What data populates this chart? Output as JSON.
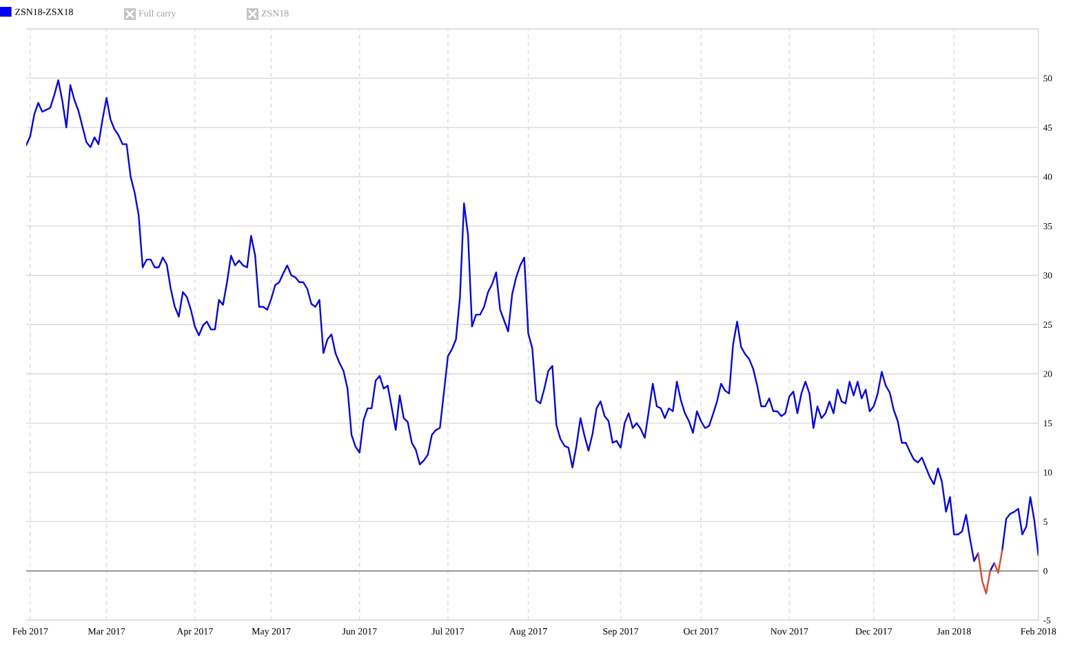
{
  "chart_data": {
    "type": "line",
    "categories": [
      null,
      "Feb 2017",
      null,
      null,
      null,
      null,
      null,
      null,
      null,
      null,
      null,
      null,
      null,
      null,
      null,
      null,
      null,
      null,
      null,
      null,
      "Mar 2017",
      null,
      null,
      null,
      null,
      null,
      null,
      null,
      null,
      null,
      null,
      null,
      null,
      null,
      null,
      null,
      null,
      null,
      null,
      null,
      null,
      null,
      "Apr 2017",
      null,
      null,
      null,
      null,
      null,
      null,
      null,
      null,
      null,
      null,
      null,
      null,
      null,
      null,
      null,
      null,
      null,
      null,
      "May 2017",
      null,
      null,
      null,
      null,
      null,
      null,
      null,
      null,
      null,
      null,
      null,
      null,
      null,
      null,
      null,
      null,
      null,
      null,
      null,
      null,
      null,
      "Jun 2017",
      null,
      null,
      null,
      null,
      null,
      null,
      null,
      null,
      null,
      null,
      null,
      null,
      null,
      null,
      null,
      null,
      null,
      null,
      null,
      null,
      null,
      "Jul 2017",
      null,
      null,
      null,
      null,
      null,
      null,
      null,
      null,
      null,
      null,
      null,
      null,
      null,
      null,
      null,
      null,
      null,
      null,
      null,
      "Aug 2017",
      null,
      null,
      null,
      null,
      null,
      null,
      null,
      null,
      null,
      null,
      null,
      null,
      null,
      null,
      null,
      null,
      null,
      null,
      null,
      null,
      null,
      null,
      "Sep 2017",
      null,
      null,
      null,
      null,
      null,
      null,
      null,
      null,
      null,
      null,
      null,
      null,
      null,
      null,
      null,
      null,
      null,
      null,
      null,
      "Oct 2017",
      null,
      null,
      null,
      null,
      null,
      null,
      null,
      null,
      null,
      null,
      null,
      null,
      null,
      null,
      null,
      null,
      null,
      null,
      null,
      null,
      null,
      "Nov 2017",
      null,
      null,
      null,
      null,
      null,
      null,
      null,
      null,
      null,
      null,
      null,
      null,
      null,
      null,
      null,
      null,
      null,
      null,
      null,
      null,
      "Dec 2017",
      null,
      null,
      null,
      null,
      null,
      null,
      null,
      null,
      null,
      null,
      null,
      null,
      null,
      null,
      null,
      null,
      null,
      null,
      null,
      "Jan 2018",
      null,
      null,
      null,
      null,
      null,
      null,
      null,
      null,
      null,
      null,
      null,
      null,
      null,
      null,
      null,
      null,
      null,
      null,
      null,
      null,
      "Feb 2018"
    ],
    "series": [
      {
        "name": "ZSN18-ZSX18",
        "color": "#0000ff",
        "values": [
          43.2,
          44.1,
          46.3,
          47.5,
          46.6,
          46.8,
          47.0,
          48.3,
          49.8,
          47.7,
          45.0,
          49.3,
          47.8,
          46.7,
          45.1,
          43.5,
          43.0,
          44.0,
          43.3,
          45.8,
          48.0,
          45.8,
          44.8,
          44.2,
          43.3,
          43.3,
          40.0,
          38.4,
          36.1,
          30.8,
          31.6,
          31.6,
          30.8,
          30.8,
          31.8,
          31.1,
          28.6,
          26.8,
          25.8,
          28.3,
          27.8,
          26.5,
          24.8,
          23.9,
          24.9,
          25.3,
          24.5,
          24.5,
          27.5,
          27.0,
          29.3,
          32.0,
          31.0,
          31.5,
          31.0,
          30.8,
          34.0,
          32.0,
          26.8,
          26.8,
          26.5,
          27.6,
          29.0,
          29.3,
          30.2,
          31.0,
          30.0,
          29.8,
          29.3,
          29.3,
          28.6,
          27.1,
          26.8,
          27.5,
          22.1,
          23.5,
          24.0,
          22.1,
          21.1,
          20.3,
          18.5,
          13.8,
          12.6,
          12.0,
          15.3,
          16.5,
          16.5,
          19.3,
          19.8,
          18.5,
          18.8,
          16.6,
          14.3,
          17.8,
          15.5,
          15.1,
          13.0,
          12.3,
          10.8,
          11.2,
          11.8,
          13.8,
          14.3,
          14.5,
          18.1,
          21.8,
          22.5,
          23.5,
          27.8,
          37.3,
          34.1,
          24.8,
          26.0,
          26.0,
          26.8,
          28.3,
          29.1,
          30.3,
          26.5,
          25.4,
          24.3,
          28.1,
          29.8,
          31.0,
          31.8,
          24.1,
          22.6,
          17.3,
          17.0,
          18.5,
          20.3,
          20.8,
          14.8,
          13.4,
          12.7,
          12.5,
          10.5,
          12.7,
          15.5,
          13.7,
          12.2,
          13.9,
          16.5,
          17.2,
          15.7,
          15.2,
          13.0,
          13.2,
          12.5,
          15.0,
          16.0,
          14.5,
          15.0,
          14.4,
          13.5,
          16.2,
          19.0,
          16.7,
          16.5,
          15.5,
          16.5,
          16.2,
          19.2,
          17.3,
          16.0,
          15.2,
          14.0,
          16.2,
          15.2,
          14.5,
          14.7,
          15.9,
          17.2,
          19.0,
          18.3,
          18.0,
          23.0,
          25.3,
          22.7,
          22.0,
          21.5,
          20.5,
          18.8,
          16.7,
          16.7,
          17.5,
          16.2,
          16.2,
          15.7,
          16.0,
          17.7,
          18.2,
          16.0,
          18.0,
          19.2,
          18.0,
          14.5,
          16.7,
          15.5,
          16.0,
          17.2,
          16.0,
          18.4,
          17.2,
          17.0,
          19.2,
          17.8,
          19.2,
          17.5,
          18.4,
          16.2,
          16.7,
          18.0,
          20.2,
          18.8,
          18.1,
          16.3,
          15.2,
          13.0,
          13.0,
          12.1,
          11.3,
          11.0,
          11.5,
          10.5,
          9.5,
          8.8,
          10.4,
          9.0,
          6.0,
          7.5,
          3.7,
          3.7,
          4.0,
          5.7,
          3.2,
          1.0,
          1.8,
          null,
          null,
          0.0,
          0.8,
          null,
          2.1,
          5.3,
          5.8,
          6.0,
          6.3,
          3.7,
          4.5,
          7.5,
          5.1,
          1.6
        ]
      },
      {
        "color": "#e0452b",
        "values": [
          null,
          null,
          null,
          null,
          null,
          null,
          null,
          null,
          null,
          null,
          null,
          null,
          null,
          null,
          null,
          null,
          null,
          null,
          null,
          null,
          null,
          null,
          null,
          null,
          null,
          null,
          null,
          null,
          null,
          null,
          null,
          null,
          null,
          null,
          null,
          null,
          null,
          null,
          null,
          null,
          null,
          null,
          null,
          null,
          null,
          null,
          null,
          null,
          null,
          null,
          null,
          null,
          null,
          null,
          null,
          null,
          null,
          null,
          null,
          null,
          null,
          null,
          null,
          null,
          null,
          null,
          null,
          null,
          null,
          null,
          null,
          null,
          null,
          null,
          null,
          null,
          null,
          null,
          null,
          null,
          null,
          null,
          null,
          null,
          null,
          null,
          null,
          null,
          null,
          null,
          null,
          null,
          null,
          null,
          null,
          null,
          null,
          null,
          null,
          null,
          null,
          null,
          null,
          null,
          null,
          null,
          null,
          null,
          null,
          null,
          null,
          null,
          null,
          null,
          null,
          null,
          null,
          null,
          null,
          null,
          null,
          null,
          null,
          null,
          null,
          null,
          null,
          null,
          null,
          null,
          null,
          null,
          null,
          null,
          null,
          null,
          null,
          null,
          null,
          null,
          null,
          null,
          null,
          null,
          null,
          null,
          null,
          null,
          null,
          null,
          null,
          null,
          null,
          null,
          null,
          null,
          null,
          null,
          null,
          null,
          null,
          null,
          null,
          null,
          null,
          null,
          null,
          null,
          null,
          null,
          null,
          null,
          null,
          null,
          null,
          null,
          null,
          null,
          null,
          null,
          null,
          null,
          null,
          null,
          null,
          null,
          null,
          null,
          null,
          null,
          null,
          null,
          null,
          null,
          null,
          null,
          null,
          null,
          null,
          null,
          null,
          null,
          null,
          null,
          null,
          null,
          null,
          null,
          null,
          null,
          null,
          null,
          null,
          null,
          null,
          null,
          null,
          null,
          null,
          null,
          null,
          null,
          null,
          null,
          null,
          null,
          null,
          null,
          null,
          null,
          null,
          null,
          null,
          null,
          null,
          null,
          null,
          1.8,
          -1.0,
          -2.3,
          0.0,
          null,
          null,
          null,
          null,
          null,
          null,
          null,
          null,
          null,
          null,
          null,
          null
        ]
      },
      {
        "color": "#e0452b",
        "values": [
          null,
          null,
          null,
          null,
          null,
          null,
          null,
          null,
          null,
          null,
          null,
          null,
          null,
          null,
          null,
          null,
          null,
          null,
          null,
          null,
          null,
          null,
          null,
          null,
          null,
          null,
          null,
          null,
          null,
          null,
          null,
          null,
          null,
          null,
          null,
          null,
          null,
          null,
          null,
          null,
          null,
          null,
          null,
          null,
          null,
          null,
          null,
          null,
          null,
          null,
          null,
          null,
          null,
          null,
          null,
          null,
          null,
          null,
          null,
          null,
          null,
          null,
          null,
          null,
          null,
          null,
          null,
          null,
          null,
          null,
          null,
          null,
          null,
          null,
          null,
          null,
          null,
          null,
          null,
          null,
          null,
          null,
          null,
          null,
          null,
          null,
          null,
          null,
          null,
          null,
          null,
          null,
          null,
          null,
          null,
          null,
          null,
          null,
          null,
          null,
          null,
          null,
          null,
          null,
          null,
          null,
          null,
          null,
          null,
          null,
          null,
          null,
          null,
          null,
          null,
          null,
          null,
          null,
          null,
          null,
          null,
          null,
          null,
          null,
          null,
          null,
          null,
          null,
          null,
          null,
          null,
          null,
          null,
          null,
          null,
          null,
          null,
          null,
          null,
          null,
          null,
          null,
          null,
          null,
          null,
          null,
          null,
          null,
          null,
          null,
          null,
          null,
          null,
          null,
          null,
          null,
          null,
          null,
          null,
          null,
          null,
          null,
          null,
          null,
          null,
          null,
          null,
          null,
          null,
          null,
          null,
          null,
          null,
          null,
          null,
          null,
          null,
          null,
          null,
          null,
          null,
          null,
          null,
          null,
          null,
          null,
          null,
          null,
          null,
          null,
          null,
          null,
          null,
          null,
          null,
          null,
          null,
          null,
          null,
          null,
          null,
          null,
          null,
          null,
          null,
          null,
          null,
          null,
          null,
          null,
          null,
          null,
          null,
          null,
          null,
          null,
          null,
          null,
          null,
          null,
          null,
          null,
          null,
          null,
          null,
          null,
          null,
          null,
          null,
          null,
          null,
          null,
          null,
          null,
          null,
          null,
          null,
          null,
          null,
          null,
          null,
          0.8,
          -0.2,
          2.1,
          null,
          null,
          null,
          null,
          null,
          null,
          null,
          null,
          null
        ]
      }
    ],
    "ylim": [
      -5,
      55
    ],
    "yticks": [
      -5,
      0,
      5,
      10,
      15,
      20,
      25,
      30,
      35,
      40,
      45,
      50,
      {
        "value": 55,
        "label": null
      }
    ],
    "ref_lines": [
      {
        "axis": "y",
        "value": 0,
        "color": "#808080"
      }
    ],
    "grid": true,
    "legend": "top left",
    "annotations": [
      "Full carry",
      "ZSN18"
    ]
  }
}
